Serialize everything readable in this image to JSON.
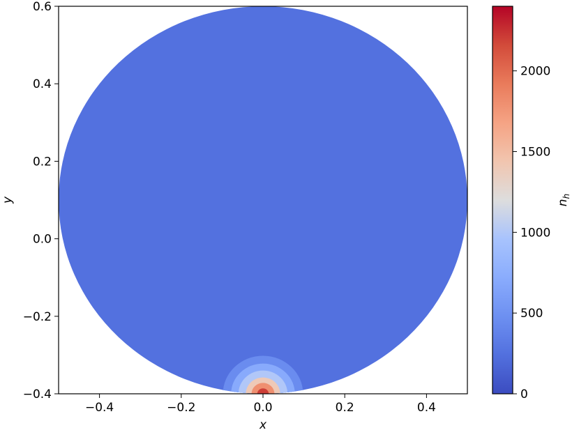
{
  "chart_data": {
    "type": "heatmap",
    "title": "",
    "xlabel": "x",
    "ylabel": "y",
    "xlim": [
      -0.5,
      0.5
    ],
    "ylim": [
      -0.4,
      0.6
    ],
    "x_ticks": [
      "−0.4",
      "−0.2",
      "0.0",
      "0.2",
      "0.4"
    ],
    "x_tick_values": [
      -0.4,
      -0.2,
      0.0,
      0.2,
      0.4
    ],
    "y_ticks": [
      "−0.4",
      "−0.2",
      "0.0",
      "0.2",
      "0.4",
      "0.6"
    ],
    "y_tick_values": [
      -0.4,
      -0.2,
      0.0,
      0.2,
      0.4,
      0.6
    ],
    "domain": {
      "shape": "circle",
      "center": [
        0.0,
        0.1
      ],
      "radius": 0.5
    },
    "background_value": 250,
    "hotspot": {
      "center": [
        0.0,
        -0.4
      ],
      "levels": [
        {
          "radius": 0.098,
          "value": 450
        },
        {
          "radius": 0.078,
          "value": 700
        },
        {
          "radius": 0.06,
          "value": 1000
        },
        {
          "radius": 0.042,
          "value": 1400
        },
        {
          "radius": 0.028,
          "value": 1800
        },
        {
          "radius": 0.014,
          "value": 2200
        }
      ]
    },
    "colorbar": {
      "label": "n_h",
      "label_main": "n",
      "label_sub": "h",
      "colormap": "coolwarm",
      "range": [
        0,
        2400
      ],
      "ticks": [
        "0",
        "500",
        "1000",
        "1500",
        "2000"
      ],
      "tick_values": [
        0,
        500,
        1000,
        1500,
        2000
      ]
    }
  }
}
